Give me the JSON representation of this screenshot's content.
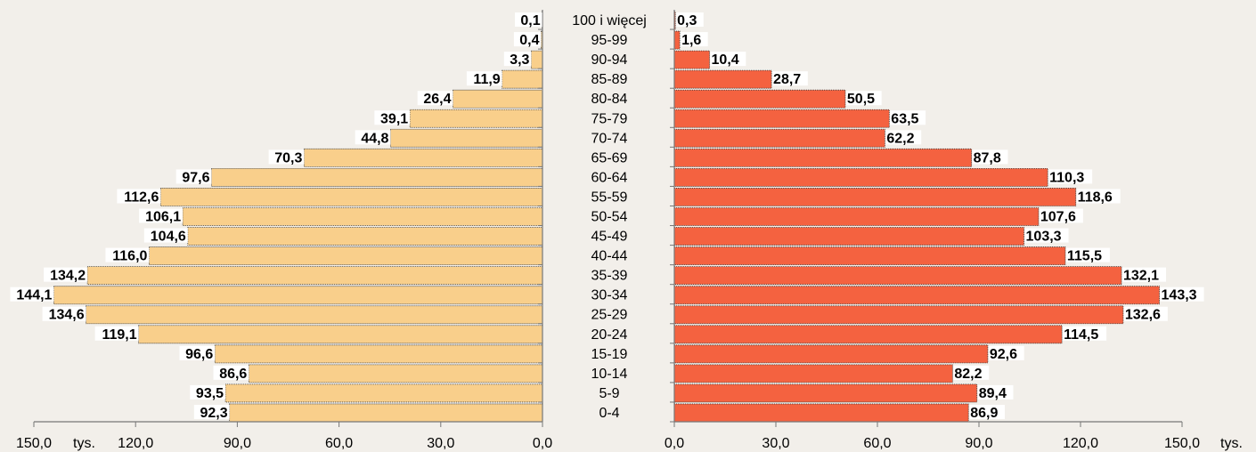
{
  "chart_data": {
    "type": "bar",
    "orientation": "horizontal",
    "subtype": "population-pyramid",
    "categories": [
      "0-4",
      "5-9",
      "10-14",
      "15-19",
      "20-24",
      "25-29",
      "30-34",
      "35-39",
      "40-44",
      "45-49",
      "50-54",
      "55-59",
      "60-64",
      "65-69",
      "70-74",
      "75-79",
      "80-84",
      "85-89",
      "90-94",
      "95-99",
      "100 i więcej"
    ],
    "series": [
      {
        "color": "#f9cf8b",
        "side": "left",
        "values": [
          92.3,
          93.5,
          86.6,
          96.6,
          119.1,
          134.6,
          144.1,
          134.2,
          116.0,
          104.6,
          106.1,
          112.6,
          97.6,
          70.3,
          44.8,
          39.1,
          26.4,
          11.9,
          3.3,
          0.4,
          0.1
        ],
        "labels": [
          "92,3",
          "93,5",
          "86,6",
          "96,6",
          "119,1",
          "134,6",
          "144,1",
          "134,2",
          "116,0",
          "104,6",
          "106,1",
          "112,6",
          "97,6",
          "70,3",
          "44,8",
          "39,1",
          "26,4",
          "11,9",
          "3,3",
          "0,4",
          "0,1"
        ]
      },
      {
        "color": "#f46240",
        "side": "right",
        "values": [
          86.9,
          89.4,
          82.2,
          92.6,
          114.5,
          132.6,
          143.3,
          132.1,
          115.5,
          103.3,
          107.6,
          118.6,
          110.3,
          87.8,
          62.2,
          63.5,
          50.5,
          28.7,
          10.4,
          1.6,
          0.3
        ],
        "labels": [
          "86,9",
          "89,4",
          "82,2",
          "92,6",
          "114,5",
          "132,6",
          "143,3",
          "132,1",
          "115,5",
          "103,3",
          "107,6",
          "118,6",
          "110,3",
          "87,8",
          "62,2",
          "63,5",
          "50,5",
          "28,7",
          "10,4",
          "1,6",
          "0,3"
        ]
      }
    ],
    "left_axis": {
      "range": [
        150,
        0
      ],
      "ticks": [
        150,
        120,
        90,
        60,
        30,
        0
      ],
      "tick_labels": [
        "150,0",
        "120,0",
        "90,0",
        "60,0",
        "30,0",
        "0,0"
      ],
      "unit_label": "tys."
    },
    "right_axis": {
      "range": [
        0,
        150
      ],
      "ticks": [
        0,
        30,
        60,
        90,
        120,
        150
      ],
      "tick_labels": [
        "0,0",
        "30,0",
        "60,0",
        "90,0",
        "120,0",
        "150,0"
      ],
      "unit_label": "tys."
    },
    "xlabel": "",
    "ylabel": "",
    "title": "",
    "grid": false,
    "legend": "none",
    "colors": {
      "background": "#f2efea",
      "axis": "#777777",
      "bar_outline": "#333333"
    }
  }
}
